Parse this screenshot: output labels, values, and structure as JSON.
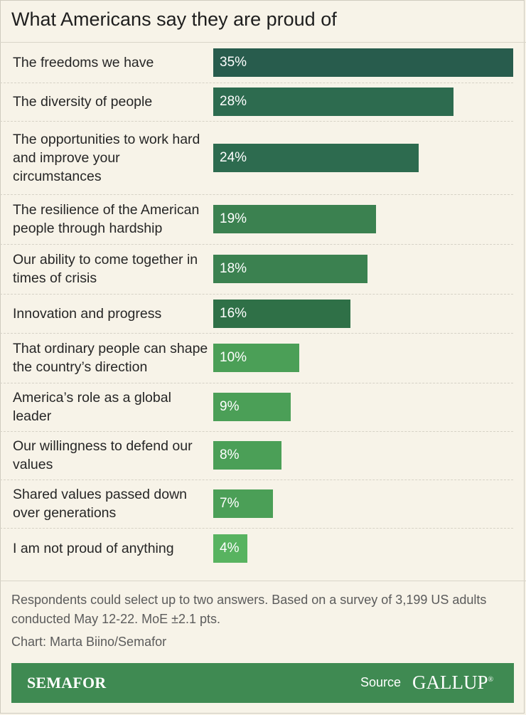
{
  "title": "What Americans say they are proud of",
  "chart_data": {
    "type": "bar",
    "orientation": "horizontal",
    "title": "What Americans say they are proud of",
    "categories": [
      "The freedoms we have",
      "The diversity of people",
      "The opportunities to work hard and improve your circumstances",
      "The resilience of the American people through hardship",
      "Our ability to come together in times of crisis",
      "Innovation and progress",
      "That ordinary people can shape the country’s direction",
      "America’s role as a global leader",
      "Our willingness to defend our values",
      "Shared values passed down over generations",
      "I am not proud of anything"
    ],
    "values": [
      35,
      28,
      24,
      19,
      18,
      16,
      10,
      9,
      8,
      7,
      4
    ],
    "data_labels": [
      "35%",
      "28%",
      "24%",
      "19%",
      "18%",
      "16%",
      "10%",
      "9%",
      "8%",
      "7%",
      "4%"
    ],
    "unit": "%",
    "xlim": [
      0,
      35
    ],
    "grid": false,
    "colors": [
      "#285c4d",
      "#2d6b4f",
      "#2d6b4f",
      "#3b8150",
      "#3b8150",
      "#2f7047",
      "#4b9f57",
      "#4b9f57",
      "#4b9f57",
      "#4b9f57",
      "#58b360"
    ]
  },
  "note": "Respondents could select up to two answers. Based on a survey of 3,199 US adults conducted May 12-22. MoE ±2.1 pts.",
  "credit": "Chart: Marta Biino/Semafor",
  "footer": {
    "brand": "SEMAFOR",
    "source_label": "Source",
    "source_logo": "GALLUP"
  }
}
